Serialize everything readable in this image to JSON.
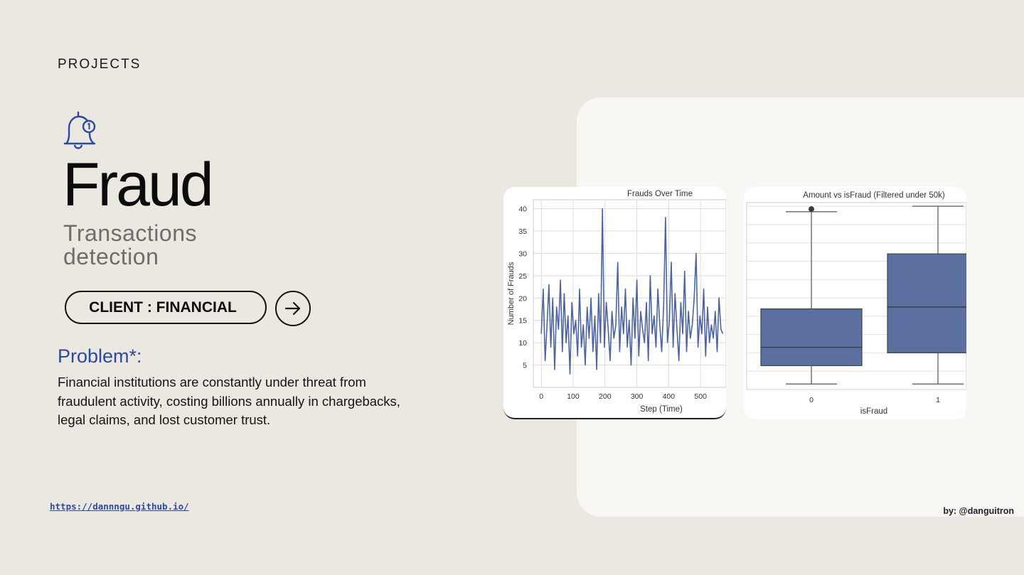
{
  "page": {
    "section_label": "PROJECTS",
    "title": "Fraud",
    "subtitle_line1": "Transactions",
    "subtitle_line2": "detection",
    "client_label": "CLIENT : FINANCIAL",
    "problem_heading": "Problem*:",
    "problem_text": "Financial institutions are constantly under threat from fraudulent activity, costing billions annually in chargebacks, legal claims, and lost customer trust.",
    "footer_link": "https://dannngu.github.io/",
    "credit": "by: @danguitron",
    "icons": {
      "bell": "bell-notification-icon",
      "arrow": "arrow-right-icon"
    },
    "colors": {
      "accent": "#2d49a1",
      "series": "#4c63a4",
      "box_fill": "#5b6fa0"
    }
  },
  "chart_data": [
    {
      "type": "line",
      "title": "Frauds Over Time",
      "xlabel": "Step (Time)",
      "ylabel": "Number of Frauds",
      "xticks": [
        0,
        100,
        200,
        300,
        400,
        500
      ],
      "yticks": [
        5,
        10,
        15,
        20,
        25,
        30,
        35,
        40
      ],
      "xlim": [
        -25,
        580
      ],
      "ylim": [
        0,
        42
      ],
      "grid": true,
      "series": [
        {
          "x": [
            0,
            6,
            12,
            18,
            24,
            30,
            36,
            42,
            48,
            54,
            60,
            66,
            72,
            78,
            84,
            90,
            96,
            102,
            108,
            114,
            120,
            126,
            132,
            138,
            144,
            150,
            156,
            162,
            168,
            174,
            180,
            186,
            192,
            198,
            204,
            210,
            216,
            222,
            228,
            234,
            240,
            246,
            252,
            258,
            264,
            270,
            276,
            282,
            288,
            294,
            300,
            306,
            312,
            318,
            324,
            330,
            336,
            342,
            348,
            354,
            360,
            366,
            372,
            378,
            384,
            390,
            396,
            402,
            408,
            414,
            420,
            426,
            432,
            438,
            444,
            450,
            456,
            462,
            468,
            474,
            480,
            486,
            492,
            498,
            504,
            510,
            516,
            522,
            528,
            534,
            540,
            546,
            552,
            558,
            564,
            570
          ],
          "y": [
            12,
            22,
            6,
            14,
            23,
            9,
            20,
            4,
            18,
            13,
            24,
            8,
            21,
            10,
            16,
            3,
            19,
            12,
            15,
            7,
            22,
            9,
            14,
            5,
            18,
            11,
            20,
            8,
            16,
            4,
            21,
            10,
            40,
            9,
            19,
            13,
            6,
            17,
            11,
            14,
            28,
            8,
            18,
            12,
            22,
            9,
            15,
            5,
            20,
            11,
            24,
            7,
            17,
            13,
            10,
            19,
            6,
            25,
            12,
            16,
            9,
            22,
            14,
            8,
            18,
            38,
            10,
            15,
            28,
            9,
            21,
            13,
            6,
            19,
            12,
            26,
            8,
            17,
            11,
            14,
            20,
            30,
            9,
            16,
            12,
            22,
            7,
            18,
            10,
            14,
            11,
            17,
            8,
            20,
            13,
            12
          ]
        }
      ]
    },
    {
      "type": "box",
      "title": "Amount vs isFraud (Filtered under 50k)",
      "xlabel": "isFraud",
      "categories": [
        "0",
        "1"
      ],
      "boxes": [
        {
          "whisker_low": 1500,
          "q1": 6500,
          "median": 11500,
          "q3": 22000,
          "whisker_high": 48500,
          "outliers_from": 48800,
          "outliers_to": 50000
        },
        {
          "whisker_low": 1500,
          "q1": 10000,
          "median": 22500,
          "q3": 37000,
          "whisker_high": 50000
        }
      ],
      "ylim": [
        0,
        51000
      ],
      "grid": true
    }
  ]
}
